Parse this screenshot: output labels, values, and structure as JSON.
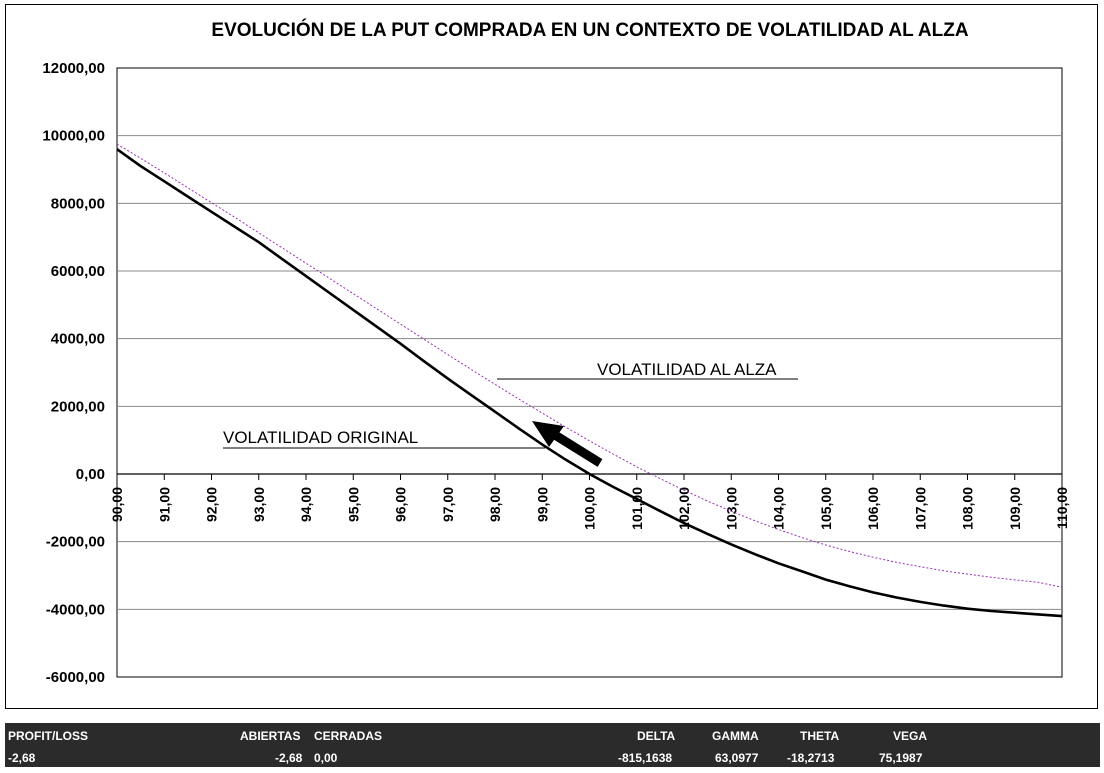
{
  "chart_data": {
    "type": "line",
    "title": "EVOLUCIÓN DE LA PUT COMPRADA EN UN CONTEXTO DE VOLATILIDAD AL ALZA",
    "xlabel": "",
    "ylabel": "",
    "x": [
      90,
      90.5,
      91,
      91.5,
      92,
      92.5,
      93,
      93.5,
      94,
      94.5,
      95,
      95.5,
      96,
      96.5,
      97,
      97.5,
      98,
      98.5,
      99,
      99.5,
      100,
      100.5,
      101,
      101.5,
      102,
      102.5,
      103,
      103.5,
      104,
      104.5,
      105,
      105.5,
      106,
      106.5,
      107,
      107.5,
      108,
      108.5,
      109,
      109.5,
      110
    ],
    "xticks": [
      "90,00",
      "91,00",
      "92,00",
      "93,00",
      "94,00",
      "95,00",
      "96,00",
      "97,00",
      "98,00",
      "99,00",
      "100,00",
      "101,00",
      "102,00",
      "103,00",
      "104,00",
      "105,00",
      "106,00",
      "107,00",
      "108,00",
      "109,00",
      "110,00"
    ],
    "yticks": [
      "12000,00",
      "10000,00",
      "8000,00",
      "6000,00",
      "4000,00",
      "2000,00",
      "0,00",
      "-2000,00",
      "-4000,00",
      "-6000,00"
    ],
    "ylim": [
      -6000,
      12000
    ],
    "grid": true,
    "series": [
      {
        "label": "VOLATILIDAD ORIGINAL",
        "color": "#000000",
        "style": "solid",
        "values": [
          9600,
          9100,
          8650,
          8200,
          7750,
          7300,
          6850,
          6350,
          5850,
          5350,
          4850,
          4350,
          3850,
          3330,
          2820,
          2330,
          1840,
          1350,
          870,
          420,
          0,
          -380,
          -740,
          -1100,
          -1450,
          -1770,
          -2080,
          -2370,
          -2640,
          -2880,
          -3120,
          -3320,
          -3500,
          -3650,
          -3780,
          -3890,
          -3980,
          -4050,
          -4100,
          -4150,
          -4200
        ]
      },
      {
        "label": "VOLATILIDAD AL ALZA",
        "color": "#9b30b8",
        "style": "dotted",
        "values": [
          9750,
          9330,
          8900,
          8460,
          8020,
          7580,
          7130,
          6680,
          6230,
          5780,
          5330,
          4880,
          4430,
          3980,
          3530,
          3090,
          2650,
          2220,
          1800,
          1380,
          980,
          590,
          210,
          -140,
          -480,
          -800,
          -1100,
          -1380,
          -1640,
          -1880,
          -2100,
          -2290,
          -2460,
          -2610,
          -2740,
          -2860,
          -2960,
          -3050,
          -3130,
          -3200,
          -3350
        ]
      }
    ]
  },
  "stats": {
    "profit_loss_label": "PROFIT/LOSS",
    "profit_loss_value": "-2,68",
    "abiertas_label": "ABIERTAS",
    "cerradas_label": "CERRADAS",
    "abiertas_value": "-2,68",
    "cerradas_value": "0,00",
    "delta_label": "DELTA",
    "delta_value": "-815,1638",
    "gamma_label": "GAMMA",
    "gamma_value": "63,0977",
    "theta_label": "THETA",
    "theta_value": "-18,2713",
    "vega_label": "VEGA",
    "vega_value": "75,1987"
  },
  "colors": {
    "frame": "#000000",
    "gridline": "#888888",
    "stats_background": "#2b2b2b",
    "stats_text": "#ffffff"
  }
}
